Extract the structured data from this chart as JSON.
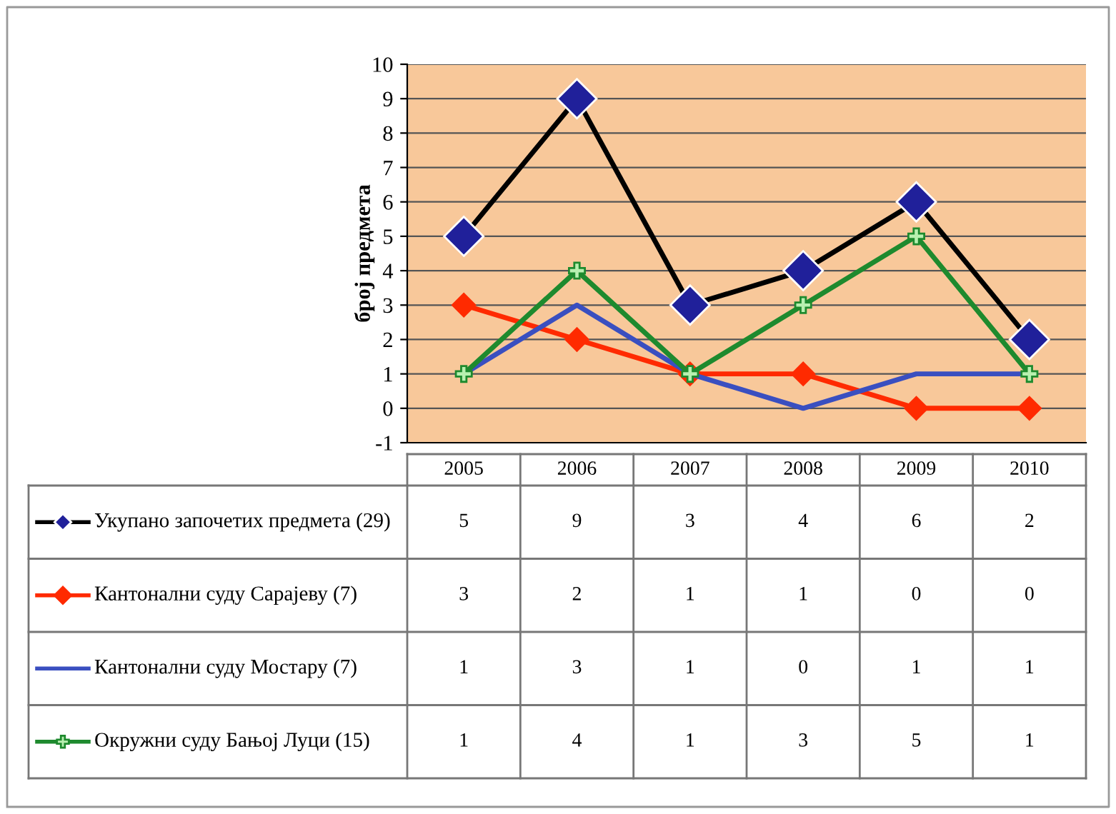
{
  "chart_data": {
    "type": "line",
    "ylabel": "број предмета",
    "categories": [
      "2005",
      "2006",
      "2007",
      "2008",
      "2009",
      "2010"
    ],
    "series": [
      {
        "name": "Укупано започетих предмета (29)",
        "color": "#000000",
        "marker": "diamond",
        "values": [
          5,
          9,
          3,
          4,
          6,
          2
        ]
      },
      {
        "name": "Кантонални суду Сарајеву (7)",
        "color": "#ff2a00",
        "marker": "diamond",
        "values": [
          3,
          2,
          1,
          1,
          0,
          0
        ]
      },
      {
        "name": "Кантонални суду Мостару (7)",
        "color": "#3a4fc0",
        "marker": "none",
        "values": [
          1,
          3,
          1,
          0,
          1,
          1
        ]
      },
      {
        "name": "Окружни суду Бањој Луци (15)",
        "color": "#1e8a2e",
        "marker": "cross",
        "values": [
          1,
          4,
          1,
          3,
          5,
          1
        ]
      }
    ],
    "ylim": [
      -1,
      10
    ],
    "yticks": [
      -1,
      0,
      1,
      2,
      3,
      4,
      5,
      6,
      7,
      8,
      9,
      10
    ],
    "grid": "y",
    "data_labels": true,
    "legend": "left"
  }
}
